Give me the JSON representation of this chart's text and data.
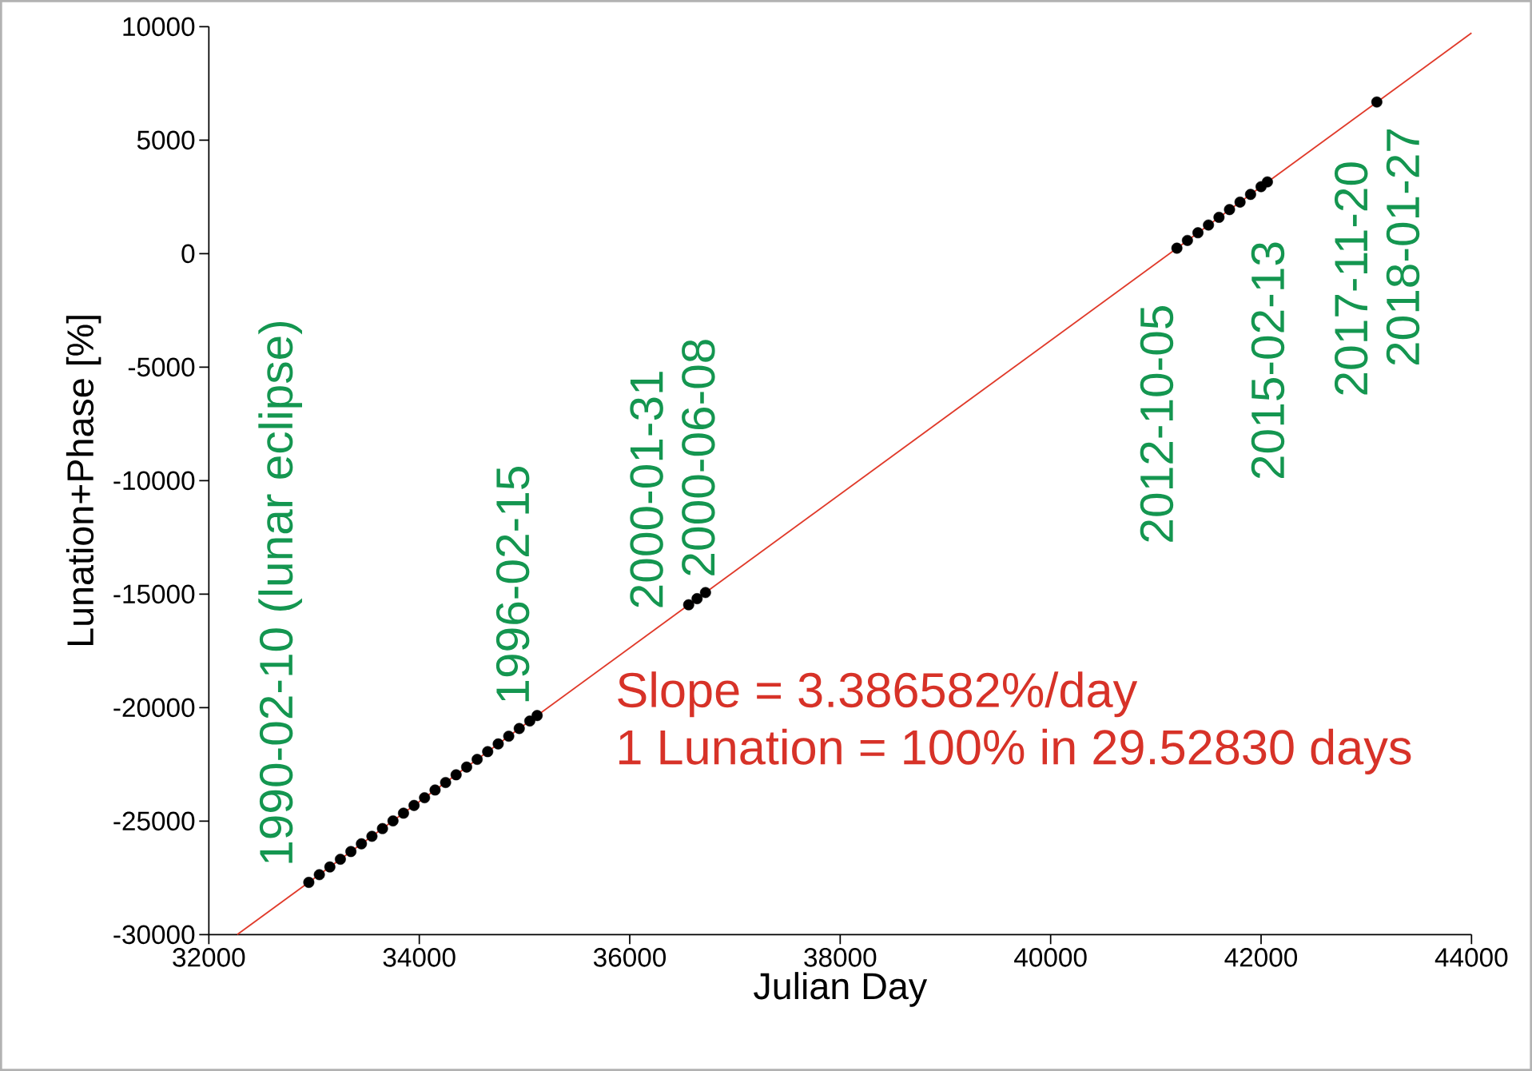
{
  "chart_data": {
    "type": "scatter",
    "xlabel": "Julian Day",
    "ylabel": "Lunation+Phase [%]",
    "xlim": [
      32000,
      44000
    ],
    "xticks": [
      32000,
      34000,
      36000,
      38000,
      40000,
      42000,
      44000
    ],
    "ylim": [
      -30000,
      10000
    ],
    "yticks": [
      -30000,
      -25000,
      -20000,
      -15000,
      -10000,
      -5000,
      0,
      5000,
      10000
    ],
    "grid": false,
    "legend": false,
    "series": [
      {
        "type": "line",
        "color": "#e03a2a",
        "line_style": "solid",
        "marker": "none",
        "x": [
          32270,
          44000
        ],
        "values": [
          -30000,
          9720
        ]
      },
      {
        "color": "#000000",
        "marker": "circle",
        "x": [
          32950,
          33050,
          33150,
          33250,
          33350,
          33450,
          33550,
          33650,
          33750,
          33850,
          33950,
          34050,
          34150,
          34250,
          34350,
          34450,
          34550,
          34650,
          34750,
          34850,
          34950,
          35050,
          35120,
          36560,
          36640,
          36720,
          41200,
          41300,
          41400,
          41500,
          41600,
          41700,
          41800,
          41900,
          42000,
          42060,
          43100
        ],
        "values": [
          -27700,
          -27360,
          -27020,
          -26680,
          -26340,
          -26000,
          -25670,
          -25330,
          -24990,
          -24650,
          -24310,
          -23970,
          -23630,
          -23300,
          -22960,
          -22620,
          -22280,
          -21940,
          -21600,
          -21260,
          -20920,
          -20590,
          -20350,
          -15470,
          -15200,
          -14930,
          240,
          580,
          920,
          1260,
          1600,
          1940,
          2270,
          2610,
          2950,
          3160,
          6680
        ]
      }
    ],
    "annotations": [
      "1990-02-10 (lunar eclipse)",
      "1996-02-15",
      "2000-01-31",
      "2000-06-08",
      "2012-10-05",
      "2015-02-13",
      "2017-11-20",
      "2018-01-27",
      "Slope = 3.386582%/day",
      "1 Lunation = 100% in 29.52830 days"
    ]
  }
}
